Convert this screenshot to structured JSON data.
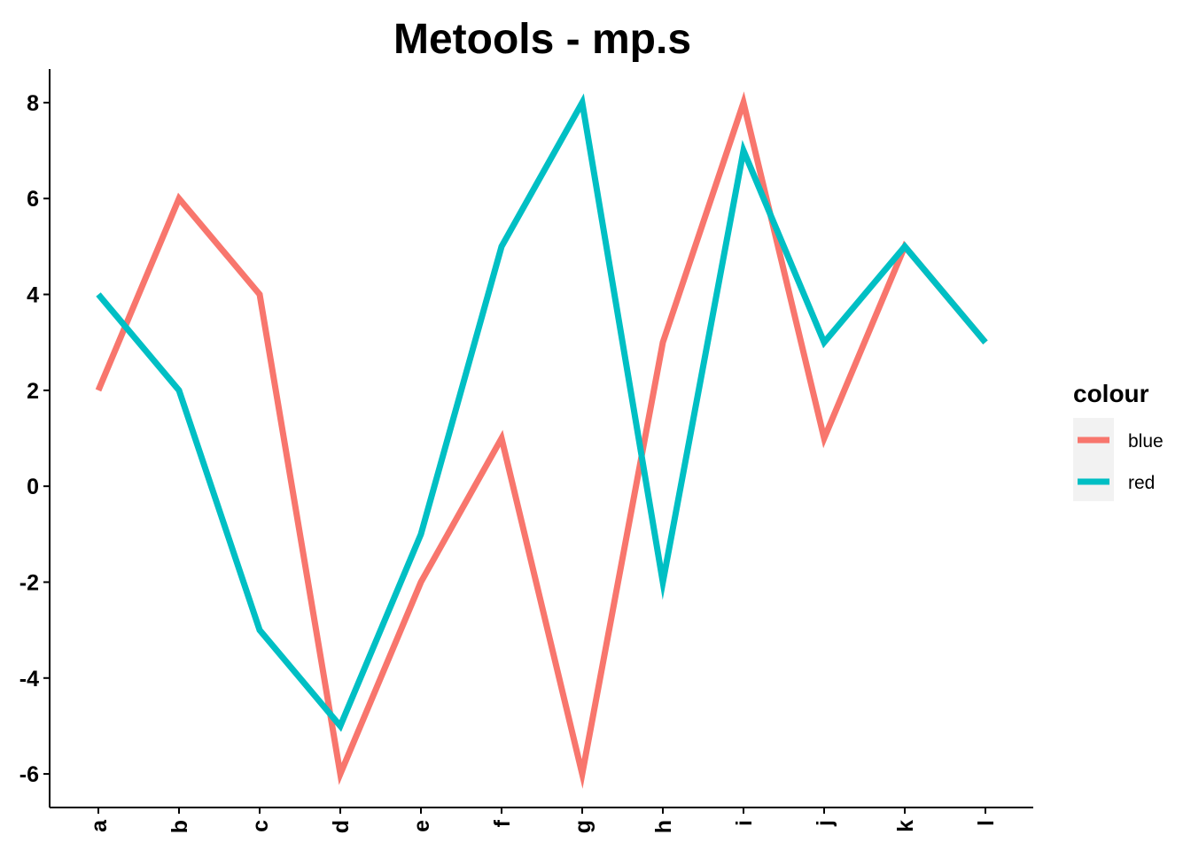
{
  "chart_data": {
    "type": "line",
    "title": "Metools - mp.s",
    "xlabel": "",
    "ylabel": "",
    "categories": [
      "a",
      "b",
      "c",
      "d",
      "e",
      "f",
      "g",
      "h",
      "i",
      "j",
      "k",
      "l"
    ],
    "y_ticks": [
      -6,
      -4,
      -2,
      0,
      2,
      4,
      6,
      8
    ],
    "ylim": [
      -6.7,
      8.7
    ],
    "grid": false,
    "legend": {
      "title": "colour",
      "placement": "right"
    },
    "series": [
      {
        "name": "blue",
        "color": "#F8766D",
        "values": [
          2,
          6,
          4,
          -6,
          -2,
          1,
          -6,
          3,
          8,
          1,
          5,
          3
        ]
      },
      {
        "name": "red",
        "color": "#00BFC4",
        "values": [
          4,
          2,
          -3,
          -5,
          -1,
          5,
          8,
          -2,
          7,
          3,
          5,
          3
        ]
      }
    ]
  }
}
